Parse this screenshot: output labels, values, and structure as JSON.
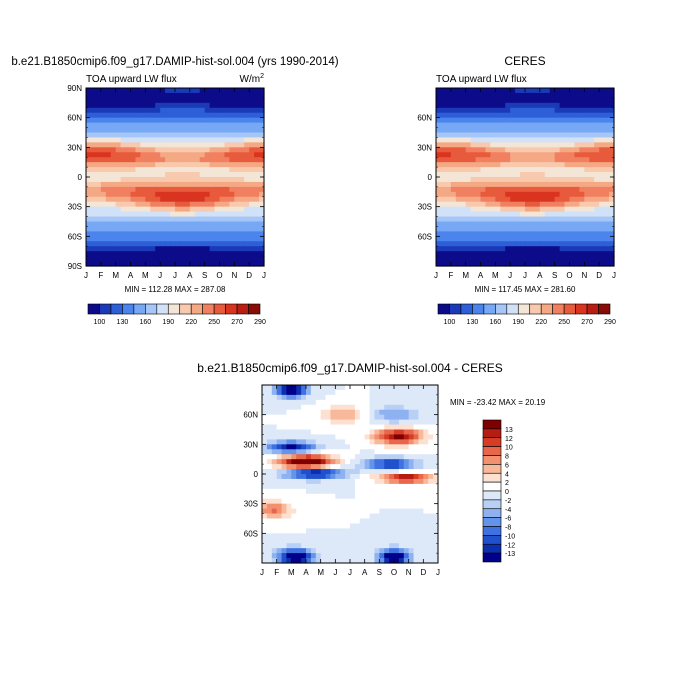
{
  "chart_data": [
    {
      "type": "heatmap",
      "title": "b.e21.B1850cmip6.f09_g17.DAMIP-hist-sol.004 (yrs 1990-2014)",
      "subtitle": "TOA upward LW flux",
      "units": "W/m",
      "units_exp": "2",
      "x_ticks": [
        "J",
        "F",
        "M",
        "A",
        "M",
        "J",
        "J",
        "A",
        "S",
        "O",
        "N",
        "D",
        "J"
      ],
      "y_ticks": [
        "90N",
        "60N",
        "30N",
        "0",
        "30S",
        "60S",
        "90S"
      ],
      "stats": "MIN = 112.28 MAX = 287.08",
      "min": 112.28,
      "max": 287.08,
      "colorbar_ticks": [
        "100",
        "130",
        "160",
        "190",
        "220",
        "250",
        "270",
        "290"
      ]
    },
    {
      "type": "heatmap",
      "title": "CERES",
      "subtitle": "TOA upward LW flux",
      "x_ticks": [
        "J",
        "F",
        "M",
        "A",
        "M",
        "J",
        "J",
        "A",
        "S",
        "O",
        "N",
        "D",
        "J"
      ],
      "y_ticks": [
        "",
        "60N",
        "30N",
        "0",
        "30S",
        "60S",
        ""
      ],
      "stats": "MIN = 117.45 MAX = 281.60",
      "min": 117.45,
      "max": 281.6,
      "colorbar_ticks": [
        "100",
        "130",
        "160",
        "190",
        "220",
        "250",
        "270",
        "290"
      ]
    },
    {
      "type": "heatmap",
      "title": "b.e21.B1850cmip6.f09_g17.DAMIP-hist-sol.004 - CERES",
      "x_ticks": [
        "J",
        "F",
        "M",
        "A",
        "M",
        "J",
        "J",
        "A",
        "S",
        "O",
        "N",
        "D",
        "J"
      ],
      "y_ticks": [
        "",
        "60N",
        "30N",
        "0",
        "30S",
        "60S",
        ""
      ],
      "stats": "MIN = -23.42 MAX =  20.19",
      "min": -23.42,
      "max": 20.19,
      "colorbar_ticks": [
        "13",
        "12",
        "10",
        "8",
        "6",
        "4",
        "2",
        "0",
        "-2",
        "-4",
        "-6",
        "-8",
        "-10",
        "-12",
        "-13"
      ]
    }
  ],
  "colors": {
    "blue_to_red": [
      "#0c0c8a",
      "#1a3ab8",
      "#2c5fd8",
      "#4c84ee",
      "#77a8f6",
      "#a6c6f8",
      "#d1e1f8",
      "#f4e6d6",
      "#f8c9ad",
      "#f5a884",
      "#f08060",
      "#e85a3c",
      "#d93420",
      "#b81e12",
      "#8a0c06"
    ],
    "diff": [
      "#00008b",
      "#0c2fb0",
      "#2050cc",
      "#3f72e0",
      "#6493ea",
      "#8eb2f1",
      "#b9d0f6",
      "#dde9f8",
      "#ffffff",
      "#fde0d0",
      "#f8b99a",
      "#f29070",
      "#e8674a",
      "#d73d26",
      "#b51c12",
      "#7f0000"
    ]
  }
}
